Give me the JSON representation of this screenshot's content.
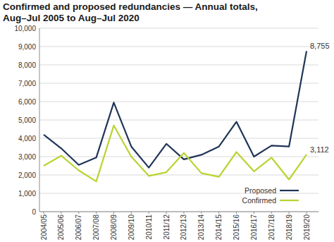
{
  "chart_data": {
    "type": "line",
    "title": "Confirmed and proposed redundancies — Annual totals, Aug–Jul 2005 to Aug–Jul 2020",
    "categories": [
      "2004/05",
      "2005/06",
      "2006/07",
      "2007/08",
      "2008/09",
      "2009/10",
      "2010/11",
      "2011/12",
      "2012/13",
      "2013/14",
      "2014/15",
      "2015/16",
      "2016/17",
      "2017/18",
      "2018/19",
      "2019/20"
    ],
    "series": [
      {
        "name": "Proposed",
        "color": "#1f3557",
        "values": [
          4200,
          3450,
          2550,
          2950,
          5950,
          3550,
          2400,
          3700,
          2850,
          3100,
          3550,
          4900,
          3000,
          3600,
          3550,
          8755
        ],
        "value_labels": [
          null,
          null,
          null,
          null,
          null,
          null,
          null,
          null,
          null,
          null,
          null,
          null,
          null,
          null,
          null,
          "8,755"
        ]
      },
      {
        "name": "Confirmed",
        "color": "#b8d432",
        "values": [
          2500,
          3050,
          2250,
          1650,
          4700,
          3000,
          1950,
          2150,
          3200,
          2100,
          1900,
          3250,
          2200,
          2950,
          1750,
          3112
        ],
        "value_labels": [
          null,
          null,
          null,
          null,
          null,
          null,
          null,
          null,
          null,
          null,
          null,
          null,
          null,
          null,
          null,
          "3,112"
        ]
      }
    ],
    "ylim": [
      0,
      10000
    ],
    "yticks": [
      0,
      {
        "value": 1000,
        "label": "1,000"
      },
      {
        "value": 2000,
        "label": "2,000"
      },
      {
        "value": 3000,
        "label": "3,000"
      },
      {
        "value": 4000,
        "label": "4,000"
      },
      {
        "value": 5000,
        "label": "5,000"
      },
      {
        "value": 6000,
        "label": "6,000"
      },
      {
        "value": 7000,
        "label": "7,000"
      },
      {
        "value": 8000,
        "label": "8,000"
      },
      {
        "value": 9000,
        "label": "9,000"
      },
      {
        "value": 10000,
        "label": "10,000"
      }
    ],
    "grid": true,
    "legend": "lower right"
  }
}
